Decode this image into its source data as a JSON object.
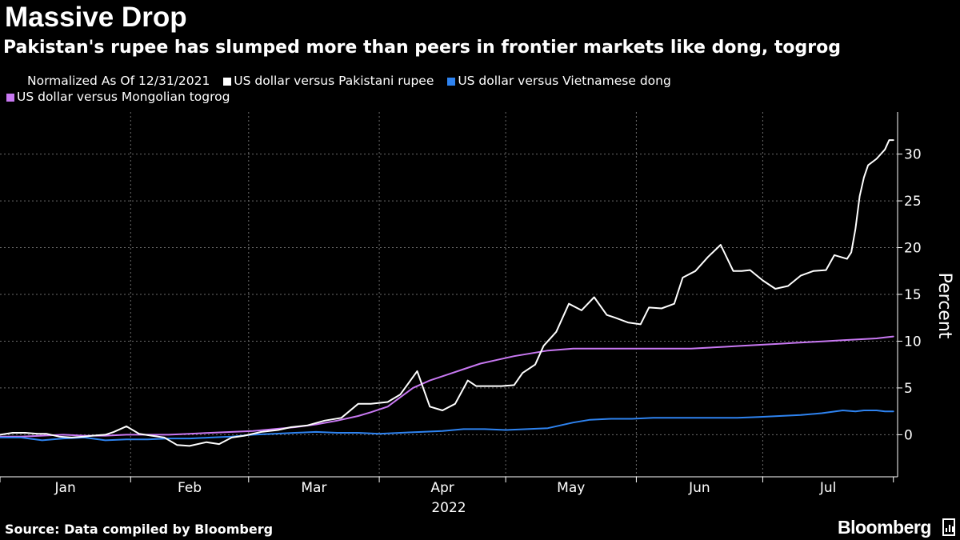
{
  "title": "Massive Drop",
  "subtitle": "Pakistan's rupee has slumped more than peers in frontier markets like dong, togrog",
  "legend_items": [
    {
      "label": "Normalized As Of 12/31/2021"
    },
    {
      "label": "US dollar versus Pakistani rupee",
      "color": "#ffffff"
    },
    {
      "label": "US dollar versus Vietnamese dong",
      "color": "#2e83f0"
    },
    {
      "label": "US dollar versus Mongolian togrog",
      "color": "#c878f2"
    }
  ],
  "source": "Source: Data compiled by Bloomberg",
  "brand": "Bloomberg",
  "chart_data": {
    "type": "line",
    "title": "Massive Drop",
    "xlabel": "2022",
    "ylabel": "Percent",
    "ylim": [
      -4.5,
      34.5
    ],
    "xlim": [
      0,
      213
    ],
    "yticks": [
      0,
      5,
      10,
      15,
      20,
      25,
      30
    ],
    "month_ticks": [
      0,
      31,
      59,
      90,
      120,
      151,
      181,
      212
    ],
    "month_labels": [
      {
        "label": "Jan",
        "x": 15.5
      },
      {
        "label": "Feb",
        "x": 45
      },
      {
        "label": "Mar",
        "x": 74.5
      },
      {
        "label": "Apr",
        "x": 105
      },
      {
        "label": "May",
        "x": 135.5
      },
      {
        "label": "Jun",
        "x": 166
      },
      {
        "label": "Jul",
        "x": 196.5
      }
    ],
    "grid": true,
    "series": [
      {
        "name": "US dollar versus Pakistani rupee",
        "color": "#ffffff",
        "x": [
          0,
          3,
          6,
          9,
          11,
          14,
          17,
          20,
          22,
          25,
          27,
          30,
          33,
          36,
          39,
          42,
          45,
          49,
          52,
          55,
          58,
          62,
          66,
          69,
          73,
          77,
          81,
          85,
          88,
          92,
          95,
          99,
          102,
          105,
          108,
          111,
          113,
          116,
          119,
          122,
          124,
          127,
          129,
          132,
          135,
          138,
          141,
          144,
          146,
          149,
          152,
          154,
          157,
          160,
          162,
          165,
          168,
          171,
          174,
          176,
          178,
          181,
          184,
          187,
          190,
          193,
          196,
          198,
          201,
          202,
          203,
          204,
          205,
          206,
          208,
          210,
          211,
          212
        ],
        "y": [
          0,
          0.2,
          0.2,
          0.1,
          0.1,
          -0.2,
          -0.3,
          -0.2,
          -0.1,
          0,
          0.3,
          0.9,
          0.1,
          -0.1,
          -0.3,
          -1.1,
          -1.2,
          -0.8,
          -1.0,
          -0.3,
          -0.1,
          0.3,
          0.5,
          0.8,
          1.0,
          1.5,
          1.8,
          3.3,
          3.3,
          3.5,
          4.3,
          6.8,
          3.0,
          2.6,
          3.3,
          5.8,
          5.2,
          5.2,
          5.2,
          5.3,
          6.6,
          7.5,
          9.5,
          11.0,
          14.0,
          13.3,
          14.7,
          12.8,
          12.5,
          12.0,
          11.8,
          13.6,
          13.5,
          14.0,
          16.8,
          17.5,
          19.0,
          20.3,
          17.5,
          17.5,
          17.6,
          16.5,
          15.6,
          15.9,
          17.0,
          17.5,
          17.6,
          19.2,
          18.8,
          19.5,
          22.0,
          25.5,
          27.5,
          28.8,
          29.5,
          30.5,
          31.5,
          31.5
        ]
      },
      {
        "name": "US dollar versus Vietnamese dong",
        "color": "#2e83f0",
        "x": [
          0,
          5,
          10,
          15,
          20,
          25,
          30,
          35,
          40,
          45,
          50,
          55,
          60,
          65,
          70,
          75,
          80,
          85,
          90,
          95,
          100,
          105,
          110,
          115,
          120,
          125,
          130,
          133,
          136,
          140,
          145,
          150,
          155,
          160,
          165,
          170,
          175,
          180,
          185,
          190,
          195,
          200,
          203,
          205,
          208,
          210,
          212
        ],
        "y": [
          -0.3,
          -0.3,
          -0.6,
          -0.4,
          -0.3,
          -0.6,
          -0.5,
          -0.5,
          -0.4,
          -0.4,
          -0.3,
          -0.2,
          0,
          0.1,
          0.2,
          0.3,
          0.2,
          0.2,
          0.1,
          0.2,
          0.3,
          0.4,
          0.6,
          0.6,
          0.5,
          0.6,
          0.7,
          1.0,
          1.3,
          1.6,
          1.7,
          1.7,
          1.8,
          1.8,
          1.8,
          1.8,
          1.8,
          1.9,
          2.0,
          2.1,
          2.3,
          2.6,
          2.5,
          2.6,
          2.6,
          2.5,
          2.5
        ]
      },
      {
        "name": "US dollar versus Mongolian togrog",
        "color": "#c878f2",
        "x": [
          0,
          5,
          10,
          15,
          20,
          25,
          30,
          35,
          40,
          45,
          50,
          55,
          60,
          65,
          70,
          75,
          80,
          85,
          88,
          92,
          95,
          98,
          102,
          106,
          110,
          114,
          118,
          122,
          126,
          130,
          133,
          136,
          140,
          144,
          148,
          152,
          156,
          160,
          164,
          168,
          172,
          176,
          180,
          184,
          188,
          192,
          196,
          200,
          204,
          208,
          210,
          212
        ],
        "y": [
          -0.2,
          -0.2,
          -0.1,
          0,
          -0.1,
          -0.1,
          0,
          0,
          0,
          0.1,
          0.2,
          0.3,
          0.4,
          0.6,
          0.8,
          1.1,
          1.5,
          2.0,
          2.4,
          3.0,
          4.0,
          5.0,
          5.8,
          6.4,
          7.0,
          7.6,
          8.0,
          8.4,
          8.7,
          9.0,
          9.1,
          9.2,
          9.2,
          9.2,
          9.2,
          9.2,
          9.2,
          9.2,
          9.2,
          9.3,
          9.4,
          9.5,
          9.6,
          9.7,
          9.8,
          9.9,
          10.0,
          10.1,
          10.2,
          10.3,
          10.4,
          10.5
        ]
      }
    ]
  }
}
